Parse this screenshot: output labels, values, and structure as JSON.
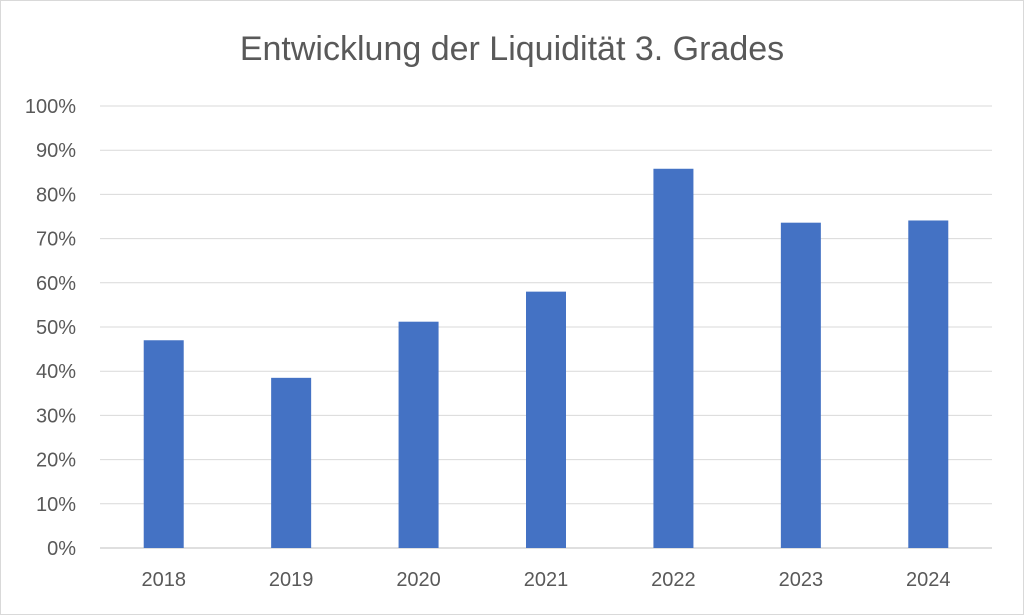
{
  "chart_data": {
    "type": "bar",
    "title": "Entwicklung der Liquidität 3. Grades",
    "xlabel": "",
    "ylabel": "",
    "categories": [
      "2018",
      "2019",
      "2020",
      "2021",
      "2022",
      "2023",
      "2024"
    ],
    "values": [
      0.47,
      0.385,
      0.512,
      0.58,
      0.858,
      0.736,
      0.741
    ],
    "ylim": [
      0,
      1
    ],
    "yticks": [
      0,
      0.1,
      0.2,
      0.3,
      0.4,
      0.5,
      0.6,
      0.7,
      0.8,
      0.9,
      1.0
    ],
    "ytick_labels": [
      "0%",
      "10%",
      "20%",
      "30%",
      "40%",
      "50%",
      "60%",
      "70%",
      "80%",
      "90%",
      "100%"
    ],
    "grid": true,
    "legend": "none",
    "bar_color": "#4472c4",
    "grid_color": "#d9d9d9",
    "text_color": "#595959"
  }
}
